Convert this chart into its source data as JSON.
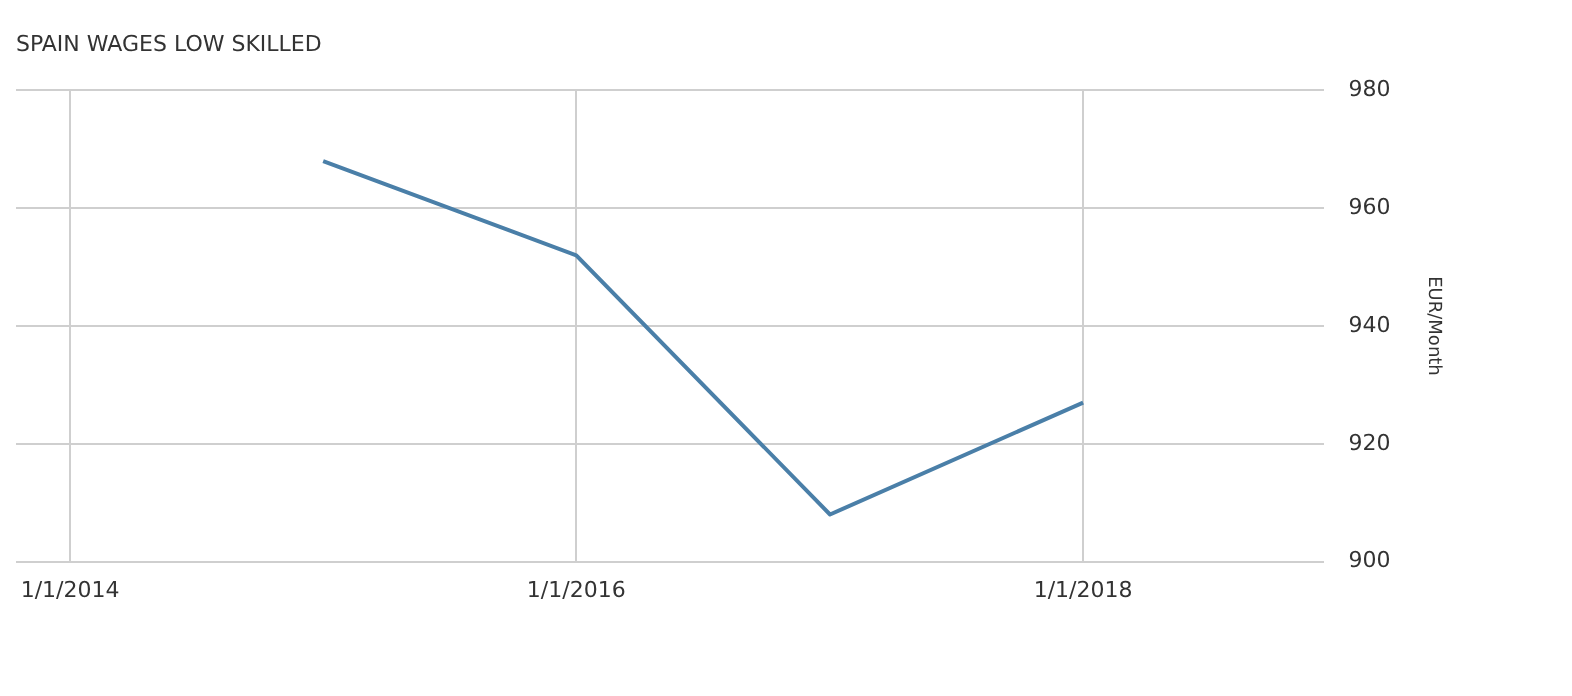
{
  "chart_data": {
    "type": "line",
    "title": "SPAIN WAGES LOW SKILLED",
    "ylabel": "EUR/Month",
    "x": [
      "2015-01-01",
      "2016-01-01",
      "2017-01-01",
      "2018-01-01"
    ],
    "series": [
      {
        "color": "#4a7fa8",
        "values": [
          968,
          952,
          908,
          927
        ]
      }
    ],
    "xlim": [
      "2013-10-15",
      "2018-12-15"
    ],
    "xticks": [
      {
        "value": "2014-01-01",
        "label": "1/1/2014"
      },
      {
        "value": "2016-01-01",
        "label": "1/1/2016"
      },
      {
        "value": "2018-01-01",
        "label": "1/1/2018"
      }
    ],
    "ylim": [
      900,
      980
    ],
    "yticks": [
      900,
      920,
      940,
      960,
      980
    ],
    "grid": true,
    "legend": false,
    "marker": "none",
    "line_style": "solid"
  }
}
